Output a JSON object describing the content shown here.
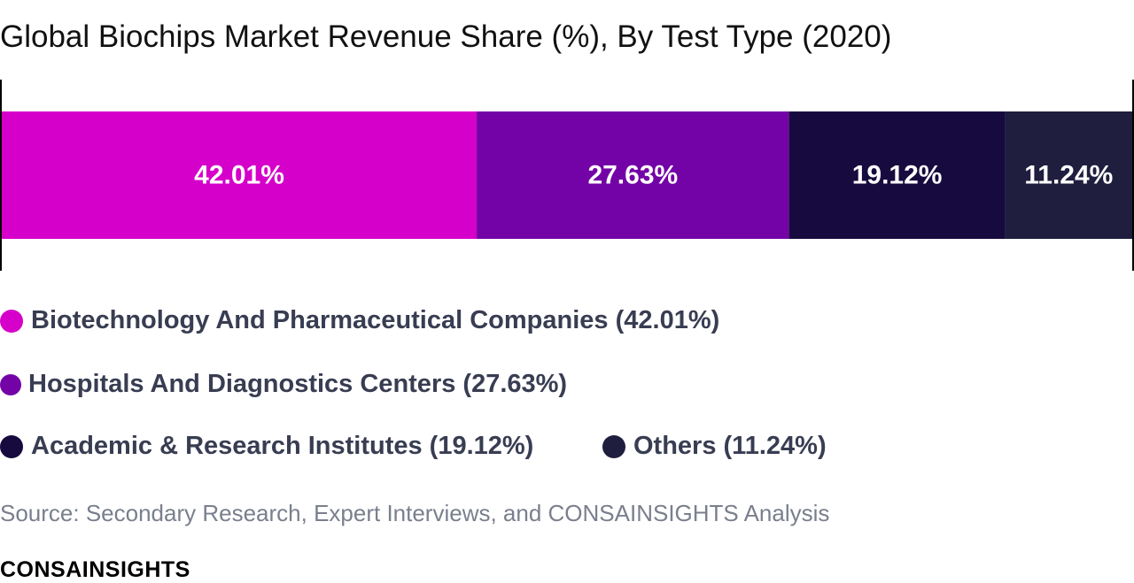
{
  "title": "Global Biochips Market Revenue Share (%), By Test Type (2020)",
  "chart_data": {
    "type": "bar",
    "orientation": "horizontal-stacked",
    "title": "Global Biochips Market Revenue Share (%), By Test Type (2020)",
    "categories": [
      "Biotechnology And Pharmaceutical Companies",
      "Hospitals And Diagnostics Centers",
      "Academic & Research Institutes",
      "Others"
    ],
    "values": [
      42.01,
      27.63,
      19.12,
      11.24
    ],
    "value_labels": [
      "42.01%",
      "27.63%",
      "19.12%",
      "11.24%"
    ],
    "colors": [
      "#d500c9",
      "#7303a6",
      "#170a3e",
      "#1f1e3e"
    ],
    "legend": [
      "Biotechnology And Pharmaceutical Companies (42.01%)",
      "Hospitals And Diagnostics Centers (27.63%)",
      "Academic & Research Institutes (19.12%)",
      "Others (11.24%)"
    ],
    "legend_position": "bottom",
    "xlim": [
      0,
      100
    ],
    "grid": false
  },
  "source": "Source: Secondary Research, Expert Interviews, and CONSAINSIGHTS Analysis",
  "brand": "CONSAINSIGHTS"
}
